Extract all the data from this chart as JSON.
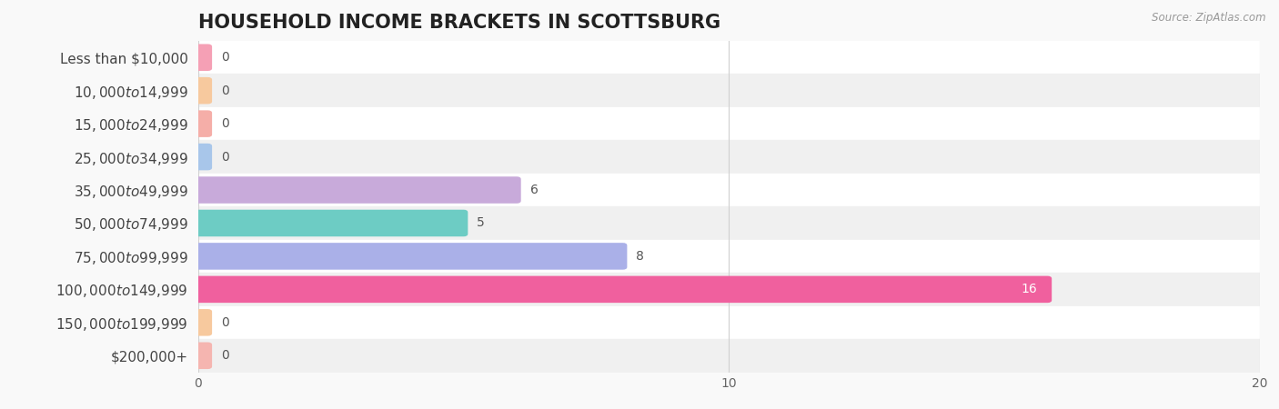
{
  "title": "HOUSEHOLD INCOME BRACKETS IN SCOTTSBURG",
  "source": "Source: ZipAtlas.com",
  "categories": [
    "Less than $10,000",
    "$10,000 to $14,999",
    "$15,000 to $24,999",
    "$25,000 to $34,999",
    "$35,000 to $49,999",
    "$50,000 to $74,999",
    "$75,000 to $99,999",
    "$100,000 to $149,999",
    "$150,000 to $199,999",
    "$200,000+"
  ],
  "values": [
    0,
    0,
    0,
    0,
    6,
    5,
    8,
    16,
    0,
    0
  ],
  "bar_colors": [
    "#f5a0b5",
    "#f7c99e",
    "#f5aea8",
    "#a8c6ea",
    "#c8aada",
    "#6dccc4",
    "#aab0e8",
    "#f0609e",
    "#f7c99e",
    "#f5b5b0"
  ],
  "background_color": "#f9f9f9",
  "row_bg_even": "#ffffff",
  "row_bg_odd": "#f0f0f0",
  "xlim": [
    0,
    20
  ],
  "xticks": [
    0,
    10,
    20
  ],
  "title_fontsize": 15,
  "label_fontsize": 11,
  "value_fontsize": 10,
  "bar_height": 0.65,
  "stub_val": 0.18
}
